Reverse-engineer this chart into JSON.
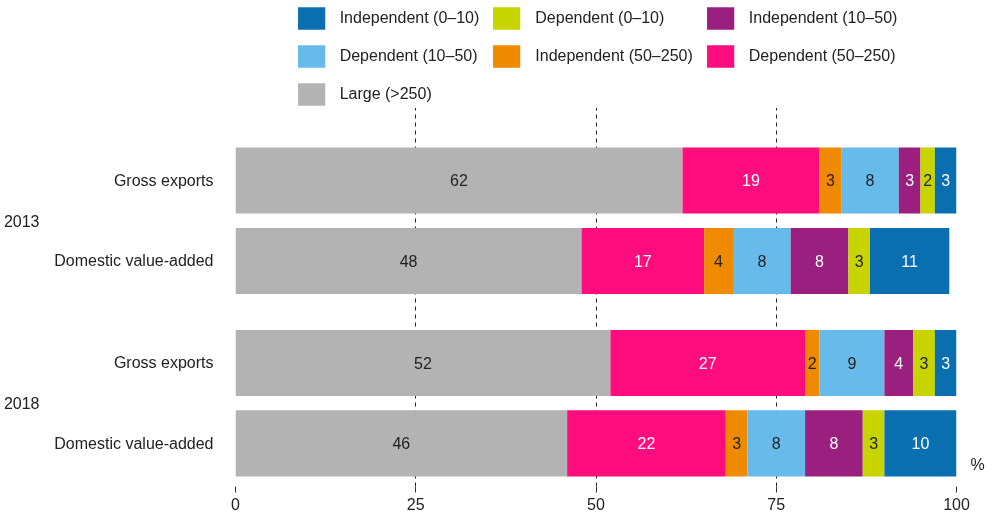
{
  "chart_data": {
    "type": "bar",
    "orientation": "horizontal",
    "stacked": true,
    "data_labels": true,
    "legend": "top",
    "grid": "x",
    "xlabel": "%",
    "categories": [
      "Gross exports",
      "Domestic value-added",
      "Gross exports",
      "Domestic value-added"
    ],
    "annotations": [
      "2013",
      "2018"
    ],
    "xlim": [
      0,
      100
    ],
    "xticks": [
      0,
      25,
      50,
      75,
      100
    ],
    "series": [
      {
        "name": "Large (>250)",
        "color": "#b3b3b3",
        "values": [
          62,
          48,
          52,
          46
        ]
      },
      {
        "name": "Dependent (50–250)",
        "color": "#ff0d7f",
        "values": [
          19,
          17,
          27,
          22
        ]
      },
      {
        "name": "Independent (50–250)",
        "color": "#f08a00",
        "values": [
          3,
          4,
          2,
          3
        ]
      },
      {
        "name": "Dependent (10–50)",
        "color": "#66bbea",
        "values": [
          8,
          8,
          9,
          8
        ]
      },
      {
        "name": "Independent (10–50)",
        "color": "#9b1f7f",
        "values": [
          3,
          8,
          4,
          8
        ]
      },
      {
        "name": "Dependent (0–10)",
        "color": "#c8d400",
        "values": [
          2,
          3,
          3,
          3
        ]
      },
      {
        "name": "Independent (0–10)",
        "color": "#0a6fb0",
        "values": [
          3,
          11,
          3,
          10
        ]
      }
    ]
  }
}
